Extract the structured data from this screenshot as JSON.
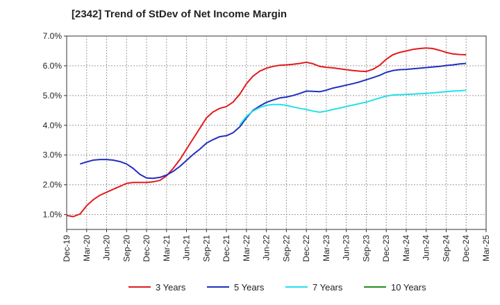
{
  "chart_data": {
    "type": "line",
    "title": "[2342]  Trend of StDev of Net Income Margin",
    "xlabel": "",
    "ylabel": "",
    "x_labels": [
      "Dec-19",
      "Mar-20",
      "Jun-20",
      "Sep-20",
      "Dec-20",
      "Mar-21",
      "Jun-21",
      "Sep-21",
      "Dec-21",
      "Mar-22",
      "Jun-22",
      "Sep-22",
      "Dec-22",
      "Mar-23",
      "Jun-23",
      "Sep-23",
      "Dec-23",
      "Mar-24",
      "Jun-24",
      "Sep-24",
      "Dec-24",
      "Mar-25"
    ],
    "y_ticks": [
      "1.0%",
      "2.0%",
      "3.0%",
      "4.0%",
      "5.0%",
      "6.0%",
      "7.0%"
    ],
    "ylim": [
      0.5,
      7.0
    ],
    "grid": true,
    "legend_position": "bottom",
    "series": [
      {
        "name": "3 Years",
        "color": "#e31a1c",
        "points": [
          [
            0,
            0.97
          ],
          [
            0.33,
            0.93
          ],
          [
            0.67,
            1.02
          ],
          [
            1,
            1.3
          ],
          [
            1.33,
            1.5
          ],
          [
            1.67,
            1.65
          ],
          [
            2,
            1.75
          ],
          [
            2.33,
            1.85
          ],
          [
            2.67,
            1.95
          ],
          [
            3,
            2.05
          ],
          [
            3.33,
            2.08
          ],
          [
            3.67,
            2.08
          ],
          [
            4,
            2.08
          ],
          [
            4.33,
            2.1
          ],
          [
            4.67,
            2.15
          ],
          [
            5,
            2.3
          ],
          [
            5.33,
            2.55
          ],
          [
            5.67,
            2.85
          ],
          [
            6,
            3.2
          ],
          [
            6.33,
            3.55
          ],
          [
            6.67,
            3.9
          ],
          [
            7,
            4.25
          ],
          [
            7.33,
            4.45
          ],
          [
            7.67,
            4.57
          ],
          [
            8,
            4.63
          ],
          [
            8.33,
            4.78
          ],
          [
            8.67,
            5.05
          ],
          [
            9,
            5.4
          ],
          [
            9.33,
            5.65
          ],
          [
            9.67,
            5.82
          ],
          [
            10,
            5.92
          ],
          [
            10.33,
            5.98
          ],
          [
            10.67,
            6.02
          ],
          [
            11,
            6.03
          ],
          [
            11.33,
            6.05
          ],
          [
            11.67,
            6.08
          ],
          [
            12,
            6.12
          ],
          [
            12.33,
            6.07
          ],
          [
            12.67,
            5.98
          ],
          [
            13,
            5.95
          ],
          [
            13.33,
            5.93
          ],
          [
            13.67,
            5.9
          ],
          [
            14,
            5.87
          ],
          [
            14.33,
            5.84
          ],
          [
            14.67,
            5.82
          ],
          [
            15,
            5.81
          ],
          [
            15.33,
            5.88
          ],
          [
            15.67,
            6.02
          ],
          [
            16,
            6.22
          ],
          [
            16.33,
            6.37
          ],
          [
            16.67,
            6.45
          ],
          [
            17,
            6.5
          ],
          [
            17.33,
            6.55
          ],
          [
            17.67,
            6.58
          ],
          [
            18,
            6.6
          ],
          [
            18.33,
            6.58
          ],
          [
            18.67,
            6.52
          ],
          [
            19,
            6.45
          ],
          [
            19.33,
            6.4
          ],
          [
            19.67,
            6.38
          ],
          [
            20,
            6.37
          ]
        ]
      },
      {
        "name": "5 Years",
        "color": "#1f2fc0",
        "points": [
          [
            0.67,
            2.7
          ],
          [
            1,
            2.77
          ],
          [
            1.33,
            2.83
          ],
          [
            1.67,
            2.85
          ],
          [
            2,
            2.85
          ],
          [
            2.33,
            2.83
          ],
          [
            2.67,
            2.78
          ],
          [
            3,
            2.7
          ],
          [
            3.33,
            2.55
          ],
          [
            3.67,
            2.35
          ],
          [
            4,
            2.23
          ],
          [
            4.33,
            2.22
          ],
          [
            4.67,
            2.25
          ],
          [
            5,
            2.33
          ],
          [
            5.33,
            2.45
          ],
          [
            5.67,
            2.62
          ],
          [
            6,
            2.82
          ],
          [
            6.33,
            3.02
          ],
          [
            6.67,
            3.2
          ],
          [
            7,
            3.4
          ],
          [
            7.33,
            3.52
          ],
          [
            7.67,
            3.62
          ],
          [
            8,
            3.65
          ],
          [
            8.33,
            3.75
          ],
          [
            8.67,
            3.95
          ],
          [
            9,
            4.25
          ],
          [
            9.33,
            4.5
          ],
          [
            9.67,
            4.65
          ],
          [
            10,
            4.77
          ],
          [
            10.33,
            4.85
          ],
          [
            10.67,
            4.92
          ],
          [
            11,
            4.95
          ],
          [
            11.33,
            5.0
          ],
          [
            11.67,
            5.07
          ],
          [
            12,
            5.15
          ],
          [
            12.33,
            5.14
          ],
          [
            12.67,
            5.13
          ],
          [
            13,
            5.18
          ],
          [
            13.33,
            5.25
          ],
          [
            13.67,
            5.3
          ],
          [
            14,
            5.35
          ],
          [
            14.33,
            5.4
          ],
          [
            14.67,
            5.46
          ],
          [
            15,
            5.53
          ],
          [
            15.33,
            5.6
          ],
          [
            15.67,
            5.68
          ],
          [
            16,
            5.78
          ],
          [
            16.33,
            5.84
          ],
          [
            16.67,
            5.87
          ],
          [
            17,
            5.88
          ],
          [
            17.33,
            5.9
          ],
          [
            17.67,
            5.92
          ],
          [
            18,
            5.94
          ],
          [
            18.33,
            5.96
          ],
          [
            18.67,
            5.98
          ],
          [
            19,
            6.01
          ],
          [
            19.33,
            6.03
          ],
          [
            19.67,
            6.06
          ],
          [
            20,
            6.08
          ]
        ]
      },
      {
        "name": "7 Years",
        "color": "#22e0e8",
        "points": [
          [
            8.67,
            4.02
          ],
          [
            9,
            4.3
          ],
          [
            9.33,
            4.48
          ],
          [
            9.67,
            4.6
          ],
          [
            10,
            4.67
          ],
          [
            10.33,
            4.7
          ],
          [
            10.67,
            4.7
          ],
          [
            11,
            4.67
          ],
          [
            11.33,
            4.62
          ],
          [
            11.67,
            4.57
          ],
          [
            12,
            4.53
          ],
          [
            12.33,
            4.48
          ],
          [
            12.67,
            4.44
          ],
          [
            13,
            4.48
          ],
          [
            13.33,
            4.53
          ],
          [
            13.67,
            4.58
          ],
          [
            14,
            4.63
          ],
          [
            14.33,
            4.68
          ],
          [
            14.67,
            4.73
          ],
          [
            15,
            4.78
          ],
          [
            15.33,
            4.85
          ],
          [
            15.67,
            4.92
          ],
          [
            16,
            4.98
          ],
          [
            16.33,
            5.02
          ],
          [
            16.67,
            5.03
          ],
          [
            17,
            5.04
          ],
          [
            17.33,
            5.05
          ],
          [
            17.67,
            5.06
          ],
          [
            18,
            5.07
          ],
          [
            18.33,
            5.09
          ],
          [
            18.67,
            5.11
          ],
          [
            19,
            5.13
          ],
          [
            19.33,
            5.15
          ],
          [
            19.67,
            5.16
          ],
          [
            20,
            5.18
          ]
        ]
      },
      {
        "name": "10 Years",
        "color": "#228b22",
        "points": []
      }
    ]
  }
}
